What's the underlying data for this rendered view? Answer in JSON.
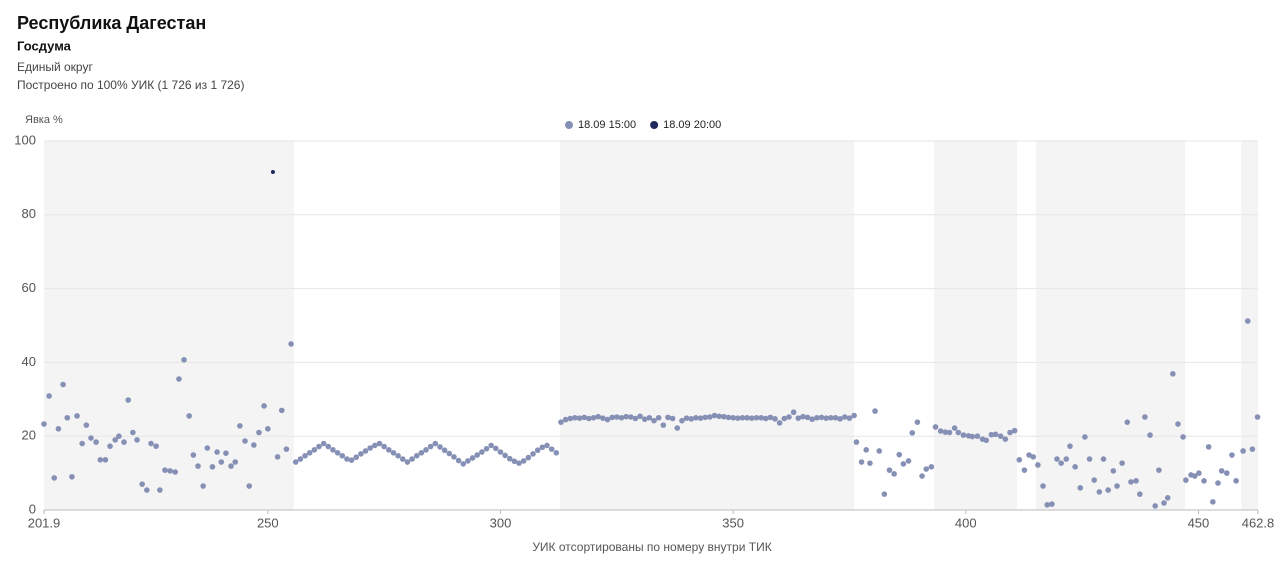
{
  "chart_data": {
    "type": "scatter",
    "title": "Республика Дагестан",
    "subtitle": "Госдума",
    "notes": [
      "Единый округ",
      "Построено по 100% УИК (1 726 из 1 726)"
    ],
    "y_label": "Явка %",
    "x_label": "УИК отсортированы по номеру внутри ТИК",
    "xlim": [
      201.9,
      462.8
    ],
    "ylim": [
      0,
      100
    ],
    "xticks": [
      201.9,
      250,
      300,
      350,
      400,
      450,
      462.8
    ],
    "yticks": [
      0,
      20,
      40,
      60,
      80,
      100
    ],
    "grid": true,
    "legend": "top",
    "bands": [
      [
        201.9,
        255.6
      ],
      [
        312.8,
        376.0
      ],
      [
        393.2,
        411.0
      ],
      [
        415.1,
        447.1
      ],
      [
        459.2,
        462.8
      ]
    ],
    "band_color": "#f4f4f4",
    "series": [
      {
        "name": "18.09 15:00",
        "color": "#8690b5",
        "x": [
          201.9,
          203,
          204.1,
          205,
          206,
          206.9,
          207.9,
          209,
          210.1,
          211,
          212,
          213.1,
          214,
          215.1,
          216.1,
          217.2,
          218,
          219.1,
          220,
          221,
          221.9,
          223,
          224,
          224.9,
          226,
          226.8,
          227.9,
          229,
          230.1,
          230.9,
          232,
          233.1,
          234,
          235,
          236.1,
          237,
          238.1,
          239.1,
          240,
          241,
          242.1,
          243,
          244,
          245.1,
          246,
          247,
          248.1,
          249.2,
          250,
          252.1,
          253,
          254,
          255,
          256,
          257,
          258,
          259,
          260,
          261,
          262,
          263,
          264,
          265,
          266,
          267,
          268,
          269,
          270,
          271,
          272,
          273,
          274,
          275,
          276,
          277,
          278,
          279,
          280,
          281,
          282,
          283,
          284,
          285,
          286,
          287,
          288,
          289,
          290,
          291,
          292,
          293,
          294,
          295,
          296,
          297,
          298,
          299,
          300,
          301,
          302,
          303,
          304,
          305,
          306,
          307,
          308,
          309,
          310,
          311,
          312,
          313,
          314,
          315,
          316,
          317,
          318,
          319,
          320,
          321,
          322,
          323,
          324,
          325,
          326,
          327,
          328,
          329,
          330,
          331,
          332,
          333,
          334,
          335,
          336,
          337,
          338,
          339,
          340,
          341,
          342,
          343,
          344,
          345,
          346,
          347,
          348,
          349,
          350,
          351,
          352,
          353,
          354,
          355,
          356,
          357,
          358,
          359,
          360,
          361,
          362,
          363,
          364,
          365,
          366,
          367,
          368,
          369,
          370,
          371,
          372,
          373,
          374,
          375,
          376,
          376.5,
          377.6,
          378.6,
          379.4,
          380.5,
          381.4,
          382.5,
          383.6,
          384.6,
          385.7,
          386.6,
          387.7,
          388.5,
          389.6,
          390.6,
          391.5,
          392.6,
          393.5,
          394.6,
          395.6,
          396.5,
          397.6,
          398.4,
          399.5,
          400.6,
          401.4,
          402.5,
          403.6,
          404.4,
          405.5,
          406.4,
          407.5,
          408.5,
          409.5,
          410.5,
          411.5,
          412.6,
          413.6,
          414.5,
          415.5,
          416.6,
          417.5,
          418.5,
          419.6,
          420.5,
          421.6,
          422.4,
          423.5,
          424.6,
          425.6,
          426.6,
          427.6,
          428.7,
          429.6,
          430.6,
          431.7,
          432.5,
          433.6,
          434.7,
          435.5,
          436.6,
          437.4,
          438.5,
          439.6,
          440.7,
          441.5,
          442.6,
          443.4,
          444.5,
          445.6,
          446.7,
          447.3,
          448.4,
          449.2,
          450.1,
          451.2,
          452.2,
          453.1,
          454.2,
          455,
          456.1,
          457.2,
          458.1,
          459.6,
          460.6,
          461.6,
          462.7
        ],
        "values": [
          23.3,
          30.9,
          8.7,
          22,
          34,
          25,
          9,
          25.5,
          18,
          23,
          19.5,
          18.4,
          13.6,
          13.6,
          17.3,
          19,
          20,
          18.4,
          29.8,
          21,
          19,
          7,
          5.4,
          18,
          17.3,
          5.4,
          10.8,
          10.6,
          10.3,
          35.5,
          40.7,
          25.5,
          14.9,
          11.9,
          6.5,
          16.8,
          11.7,
          15.7,
          13,
          15.4,
          11.9,
          13,
          22.8,
          18.7,
          6.5,
          17.6,
          21,
          28.2,
          22,
          14.4,
          27,
          16.5,
          45,
          13,
          13.8,
          14.7,
          15.5,
          16.3,
          17.2,
          18,
          17.2,
          16.3,
          15.5,
          14.7,
          13.8,
          13.5,
          14.3,
          15.2,
          16,
          16.8,
          17.5,
          18,
          17.2,
          16.3,
          15.5,
          14.7,
          13.8,
          13,
          13.8,
          14.7,
          15.5,
          16.3,
          17.2,
          18,
          17.1,
          16.2,
          15.3,
          14.4,
          13.4,
          12.5,
          13.3,
          14.1,
          14.9,
          15.7,
          16.6,
          17.5,
          16.7,
          15.7,
          14.8,
          13.9,
          13.2,
          12.7,
          13.3,
          14.2,
          15.2,
          16.2,
          17,
          17.5,
          16.5,
          15.5,
          23.8,
          24.5,
          24.8,
          25,
          24.9,
          25.1,
          24.8,
          25,
          25.3,
          24.9,
          24.5,
          25.1,
          25.2,
          25,
          25.3,
          25.2,
          24.8,
          25.4,
          24.6,
          25,
          24.2,
          25,
          23,
          25.1,
          24.8,
          22.2,
          24.2,
          24.9,
          24.7,
          25,
          24.9,
          25.1,
          25.2,
          25.6,
          25.4,
          25.3,
          25.1,
          25,
          24.9,
          25,
          25,
          24.9,
          25,
          25,
          24.8,
          25.1,
          24.7,
          23.6,
          24.8,
          25.2,
          26.5,
          24.9,
          25.3,
          25.1,
          24.6,
          25,
          25.1,
          24.9,
          25,
          25,
          24.7,
          25.2,
          24.9,
          25.6,
          18.4,
          13,
          16.3,
          12.7,
          26.8,
          16,
          4.3,
          10.8,
          9.8,
          15,
          12.5,
          13.3,
          20.9,
          23.8,
          9.2,
          11.1,
          11.7,
          22.5,
          21.4,
          21.1,
          21,
          22.2,
          21,
          20.3,
          20.1,
          19.9,
          20,
          19.2,
          18.9,
          20.4,
          20.5,
          20,
          19.2,
          21,
          21.5,
          13.6,
          10.8,
          14.9,
          14.4,
          12.2,
          6.5,
          1.4,
          1.6,
          13.8,
          12.7,
          13.8,
          17.3,
          11.7,
          6,
          19.8,
          13.8,
          8.1,
          4.9,
          13.8,
          5.4,
          10.6,
          6.5,
          12.7,
          23.8,
          7.6,
          7.9,
          4.3,
          25.2,
          20.3,
          1.1,
          10.8,
          1.9,
          3.3,
          36.9,
          23.3,
          19.8,
          8.1,
          9.5,
          9.2,
          10,
          7.9,
          17.1,
          2.2,
          7.3,
          10.6,
          10,
          14.9,
          7.9,
          16,
          51.2,
          16.5,
          25.2
        ]
      },
      {
        "name": "18.09 20:00",
        "color": "#1f2a5a",
        "x": [
          251.1
        ],
        "values": [
          91.6
        ]
      }
    ]
  }
}
